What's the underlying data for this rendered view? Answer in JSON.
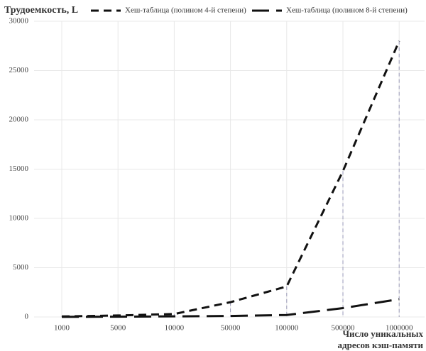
{
  "chart_data": {
    "type": "line",
    "y_label": "Трудоемкость, L",
    "x_label": [
      "Число уникальных",
      "адресов кэш-памяти"
    ],
    "categories": [
      "1000",
      "5000",
      "10000",
      "50000",
      "100000",
      "500000",
      "1000000"
    ],
    "series": [
      {
        "name": "Хеш-таблица (полином 4-й степени)",
        "color": "#111111",
        "values": [
          50,
          150,
          300,
          1500,
          3100,
          14800,
          28000
        ]
      },
      {
        "name": "Хеш-таблица (полином 8-й степени)",
        "color": "#111111",
        "values": [
          10,
          30,
          60,
          100,
          200,
          900,
          1800
        ]
      }
    ],
    "ylim": [
      0,
      30000
    ],
    "yticks": [
      0,
      5000,
      10000,
      15000,
      20000,
      25000,
      30000
    ],
    "grid": true,
    "legend": "top"
  }
}
